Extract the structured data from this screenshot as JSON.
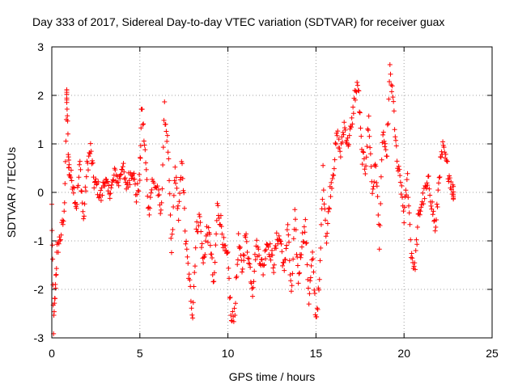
{
  "chart_data": {
    "type": "scatter",
    "title": "Day 333 of 2017, Sidereal Day-to-day VTEC variation (SDTVAR) for receiver guax",
    "xlabel": "GPS time / hours",
    "ylabel": "SDTVAR / TECUs",
    "xlim": [
      0,
      25
    ],
    "ylim": [
      -3,
      3
    ],
    "x_ticks": [
      0,
      5,
      10,
      15,
      20,
      25
    ],
    "y_ticks": [
      -3,
      -2,
      -1,
      0,
      1,
      2,
      3
    ],
    "grid": true,
    "marker": "+",
    "series": [
      {
        "name": "SDTVAR",
        "color": "#ff0000",
        "x": [
          0.0,
          0.1,
          0.2,
          0.3,
          0.5,
          0.7,
          0.85,
          0.85,
          0.95,
          1.0,
          1.2,
          1.4,
          1.6,
          1.8,
          2.0,
          2.2,
          2.4,
          2.6,
          2.8,
          3.0,
          3.2,
          3.4,
          3.6,
          3.8,
          4.0,
          4.2,
          4.4,
          4.6,
          4.8,
          5.0,
          5.1,
          5.3,
          5.5,
          5.7,
          6.0,
          6.2,
          6.4,
          6.6,
          6.8,
          7.0,
          7.2,
          7.4,
          7.6,
          7.8,
          8.0,
          8.2,
          8.4,
          8.6,
          8.8,
          9.0,
          9.2,
          9.4,
          9.6,
          9.8,
          10.0,
          10.2,
          10.4,
          10.6,
          10.8,
          11.0,
          11.2,
          11.4,
          11.6,
          11.8,
          12.0,
          12.2,
          12.4,
          12.6,
          12.8,
          13.0,
          13.2,
          13.4,
          13.6,
          13.8,
          14.0,
          14.2,
          14.4,
          14.6,
          14.8,
          15.0,
          15.2,
          15.4,
          15.6,
          15.8,
          16.0,
          16.2,
          16.4,
          16.6,
          16.8,
          17.0,
          17.2,
          17.4,
          17.6,
          17.8,
          18.0,
          18.2,
          18.4,
          18.6,
          18.8,
          19.0,
          19.2,
          19.4,
          19.6,
          19.8,
          20.0,
          20.2,
          20.4,
          20.6,
          20.8,
          21.0,
          21.2,
          21.4,
          21.6,
          21.8,
          22.0,
          22.2,
          22.4,
          22.6,
          22.8
        ],
        "y": [
          -0.3,
          -2.8,
          -2.0,
          -1.2,
          -0.9,
          -0.5,
          1.9,
          2.0,
          0.7,
          0.4,
          0.2,
          -0.3,
          0.6,
          -0.6,
          0.5,
          0.9,
          0.2,
          0.1,
          -0.1,
          0.3,
          0.0,
          0.1,
          0.4,
          0.2,
          0.6,
          0.1,
          0.3,
          0.5,
          -0.1,
          0.3,
          1.8,
          0.8,
          -0.4,
          0.2,
          0.1,
          -0.5,
          1.7,
          0.9,
          -1.3,
          0.5,
          -0.5,
          0.7,
          -1.0,
          -1.8,
          -2.5,
          -0.8,
          -0.5,
          -1.5,
          -0.8,
          -1.0,
          -2.0,
          -0.3,
          -0.6,
          -1.2,
          -1.4,
          -2.7,
          -2.4,
          -1.0,
          -1.6,
          -0.9,
          -1.4,
          -2.0,
          -1.1,
          -1.3,
          -1.6,
          -1.0,
          -1.2,
          -1.5,
          -0.9,
          -1.0,
          -1.7,
          -0.6,
          -2.2,
          -0.5,
          -1.8,
          -1.0,
          -0.7,
          -2.2,
          -1.3,
          -2.6,
          -1.9,
          0.4,
          -1.0,
          0.0,
          0.5,
          1.2,
          0.8,
          1.4,
          1.0,
          1.3,
          2.0,
          2.2,
          0.8,
          0.5,
          1.5,
          0.0,
          0.6,
          -1.0,
          1.3,
          0.6,
          2.5,
          1.8,
          0.6,
          0.2,
          -0.5,
          0.3,
          -1.2,
          -1.6,
          -0.6,
          -0.2,
          0.0,
          0.2,
          -0.3,
          -0.8,
          0.4,
          0.9,
          0.6,
          0.3,
          0.0
        ]
      }
    ]
  }
}
